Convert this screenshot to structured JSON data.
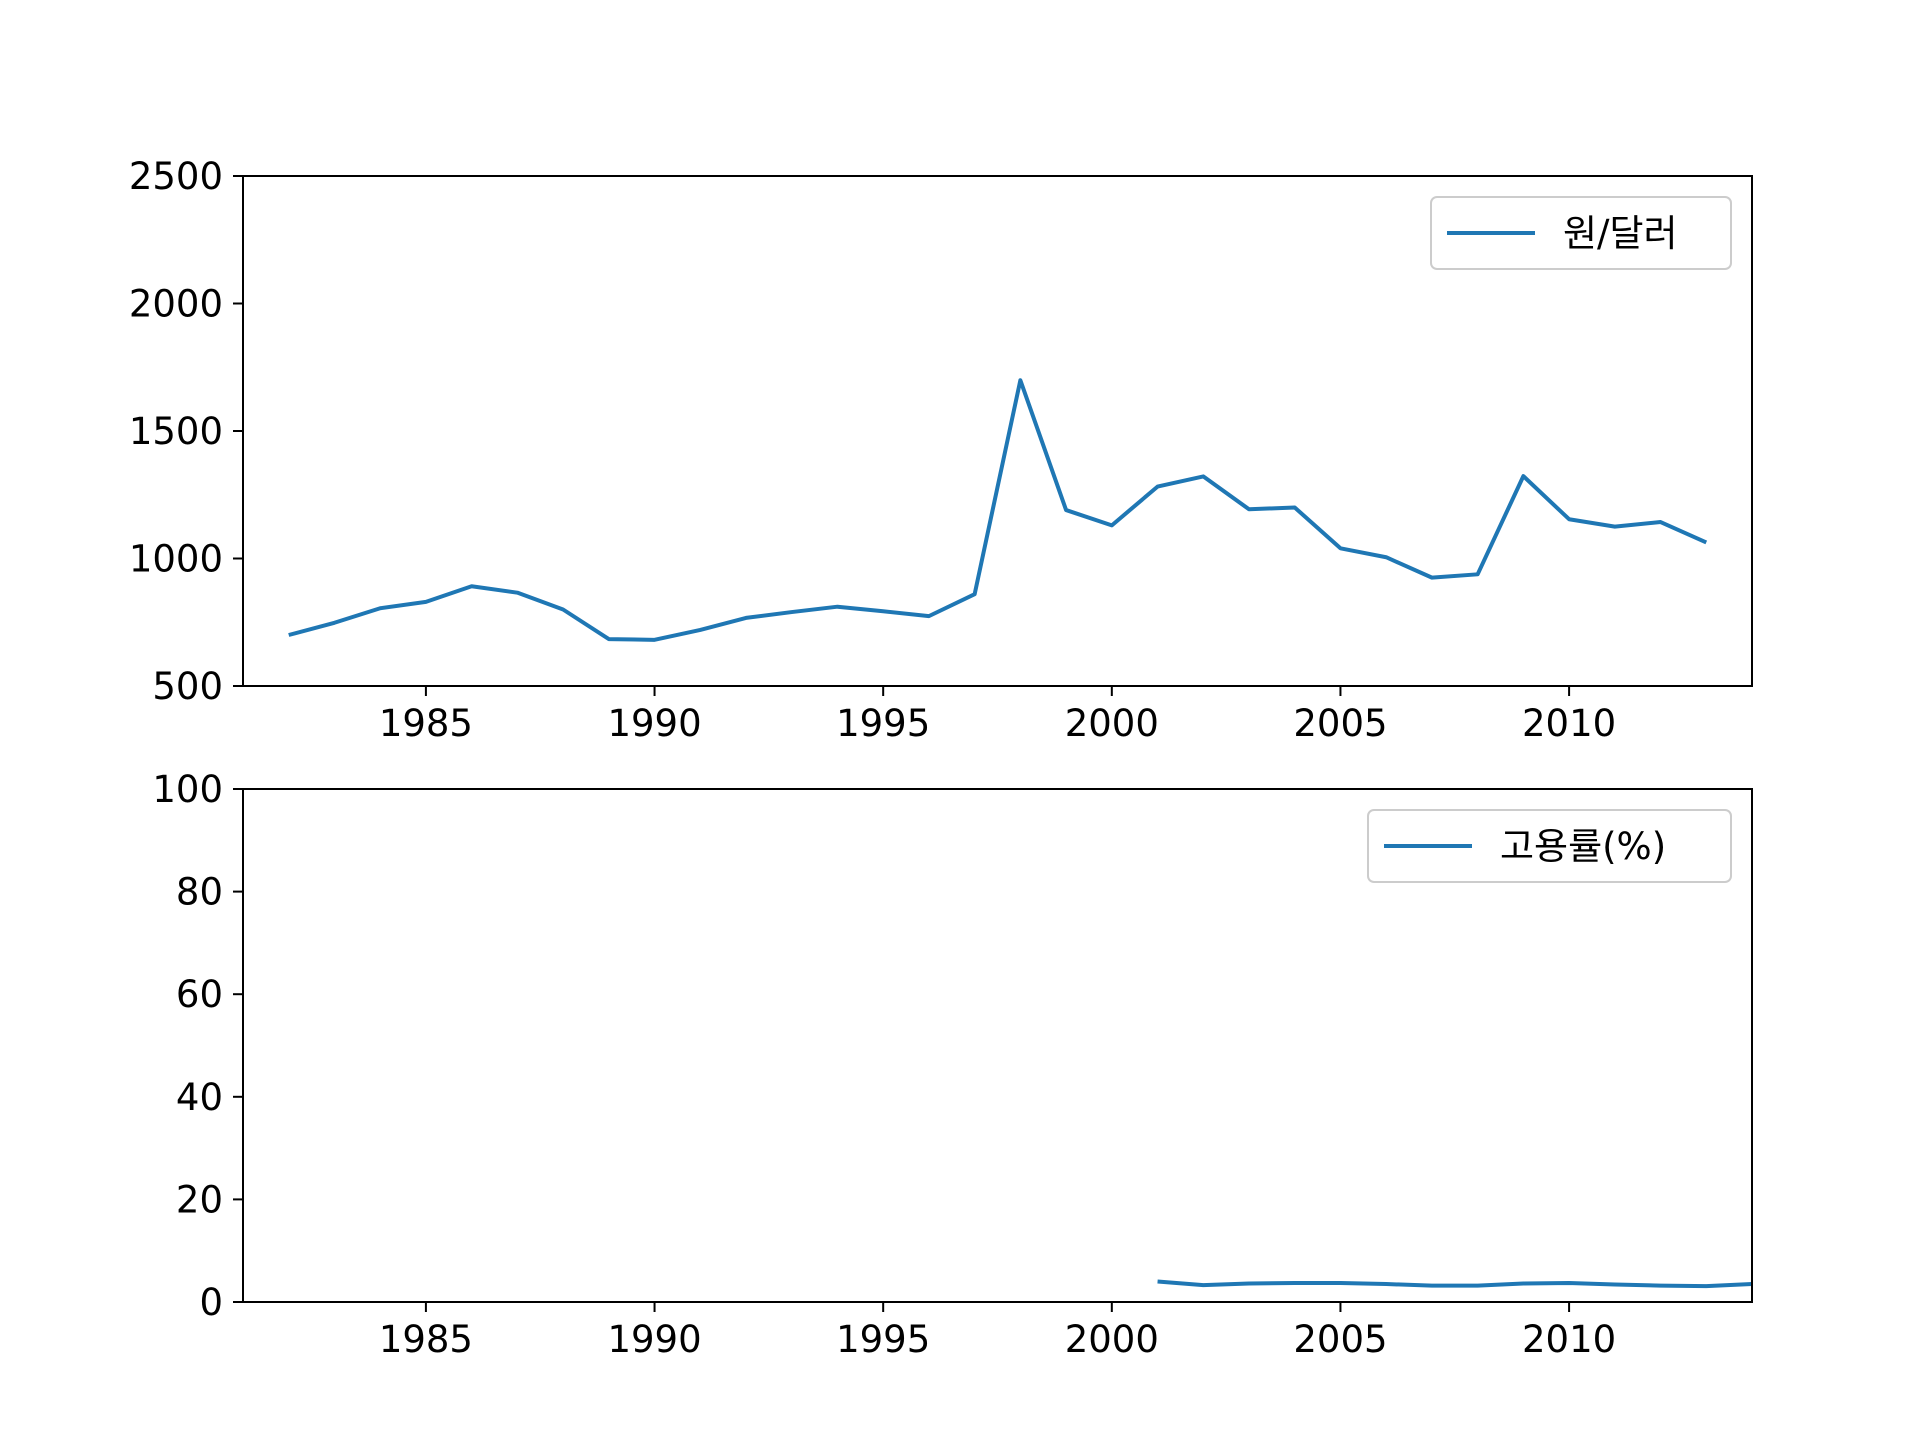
{
  "chart_data": [
    {
      "type": "line",
      "title": "",
      "xlabel": "",
      "ylabel": "",
      "xlim": [
        1981,
        2014
      ],
      "ylim": [
        500,
        2500
      ],
      "xticks": [
        1985,
        1990,
        1995,
        2000,
        2005,
        2010
      ],
      "yticks": [
        500,
        1000,
        1500,
        2000,
        2500
      ],
      "grid": false,
      "legend_position": "top-right",
      "series": [
        {
          "name": "원/달러",
          "color": "#1f77b4",
          "x": [
            1982,
            1983,
            1984,
            1985,
            1986,
            1987,
            1988,
            1989,
            1990,
            1991,
            1992,
            1993,
            1994,
            1995,
            1996,
            1997,
            1998,
            1999,
            2000,
            2001,
            2002,
            2003,
            2004,
            2005,
            2006,
            2007,
            2008,
            2009,
            2010,
            2011,
            2012,
            2013
          ],
          "y": [
            700,
            748,
            805,
            830,
            891,
            866,
            800,
            684,
            681,
            720,
            767,
            790,
            811,
            793,
            774,
            860,
            1699,
            1190,
            1130,
            1282,
            1322,
            1193,
            1200,
            1040,
            1005,
            925,
            938,
            1323,
            1154,
            1125,
            1143,
            1063
          ]
        }
      ]
    },
    {
      "type": "line",
      "title": "",
      "xlabel": "",
      "ylabel": "",
      "xlim": [
        1981,
        2014
      ],
      "ylim": [
        0,
        100
      ],
      "xticks": [
        1985,
        1990,
        1995,
        2000,
        2005,
        2010
      ],
      "yticks": [
        0,
        20,
        40,
        60,
        80,
        100
      ],
      "grid": false,
      "legend_position": "top-right",
      "series": [
        {
          "name": "고용률(%)",
          "color": "#1f77b4",
          "x": [
            2001,
            2002,
            2003,
            2004,
            2005,
            2006,
            2007,
            2008,
            2009,
            2010,
            2011,
            2012,
            2013,
            2014
          ],
          "y": [
            4.0,
            3.3,
            3.6,
            3.7,
            3.7,
            3.5,
            3.2,
            3.2,
            3.6,
            3.7,
            3.4,
            3.2,
            3.1,
            3.5
          ]
        }
      ]
    }
  ]
}
